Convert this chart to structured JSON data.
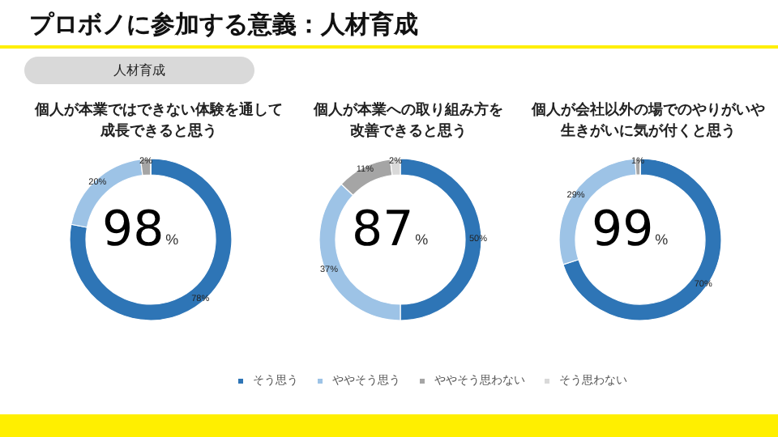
{
  "chart_data": {
    "type": "donut",
    "title": "プロボノに参加する意義：人材育成",
    "subtitle": "人材育成",
    "categories": [
      "そう思う",
      "ややそう思う",
      "ややそう思わない",
      "そう思わない"
    ],
    "colors": [
      "#2e75b6",
      "#9dc3e6",
      "#a5a5a5",
      "#d9d9d9"
    ],
    "annotations": [
      "98%",
      "87%",
      "99%"
    ],
    "legend": "bottom",
    "series": [
      {
        "name": "個人が本業ではできない体験を通して成長できると思う",
        "values": [
          78,
          20,
          2,
          0
        ],
        "value_labels": [
          "78%",
          "20%",
          "2%",
          null
        ]
      },
      {
        "name": "個人が本業への取り組み方を改善できると思う",
        "values": [
          50,
          37,
          11,
          2
        ],
        "value_labels": [
          "50%",
          "37%",
          "11%",
          "2%"
        ]
      },
      {
        "name": "個人が会社以外の場でのやりがいや生きがいに気が付くと思う",
        "values": [
          70,
          29,
          1,
          0
        ],
        "value_labels": [
          "70%",
          "29%",
          "1%",
          null
        ]
      }
    ]
  }
}
